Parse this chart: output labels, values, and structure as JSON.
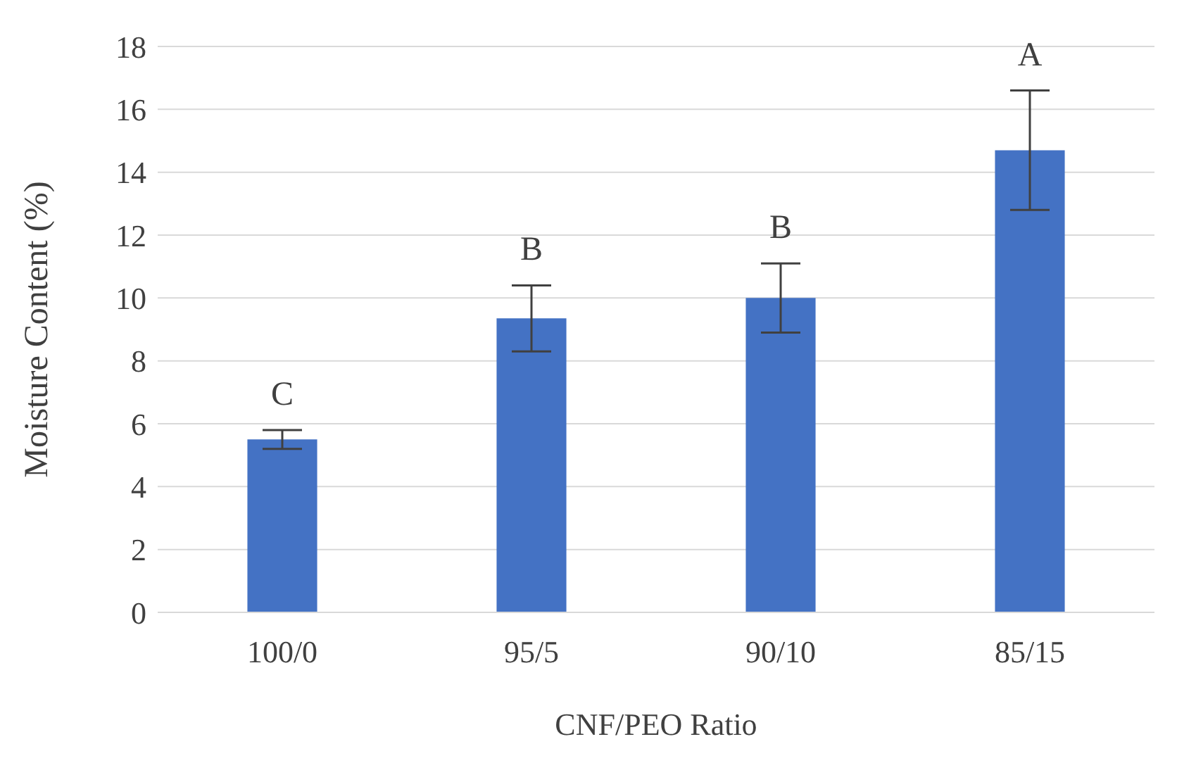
{
  "chart_data": {
    "type": "bar",
    "xlabel": "CNF/PEO Ratio",
    "ylabel": "Moisture Content (%)",
    "categories": [
      "100/0",
      "95/5",
      "90/10",
      "85/15"
    ],
    "values": [
      5.5,
      9.35,
      10.0,
      14.7
    ],
    "errors": [
      0.3,
      1.05,
      1.1,
      1.9
    ],
    "color": "#4472c4",
    "ylim": [
      0,
      18
    ],
    "yticks": [
      0,
      2,
      4,
      6,
      8,
      10,
      12,
      14,
      16,
      18
    ],
    "grid": "y",
    "annotations": [
      "C",
      "B",
      "B",
      "A"
    ]
  }
}
